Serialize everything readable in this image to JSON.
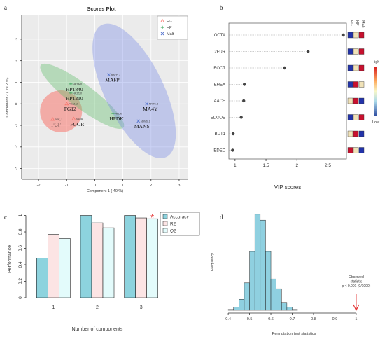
{
  "panel_labels": [
    "a",
    "b",
    "c",
    "d"
  ],
  "chart_data": [
    {
      "type": "scatter",
      "title": "Scores Plot",
      "xlabel": "Component 1 ( 40 %)",
      "ylabel": "Component 2 ( 19.2 %)",
      "xlim": [
        -2.6,
        3.3
      ],
      "ylim": [
        -3.5,
        4.1
      ],
      "xticks": [
        -2,
        -1,
        0,
        1,
        2,
        3
      ],
      "yticks": [
        -3,
        -2,
        -1,
        0,
        1,
        2,
        3
      ],
      "grid": true,
      "legend_position": "top-right",
      "series": [
        {
          "name": "FG",
          "color": "#f8766d",
          "marker": "triangle",
          "points": [
            {
              "x": -1.0,
              "y": 0.0,
              "tag": "FG12_1",
              "label": "FG12"
            },
            {
              "x": -1.5,
              "y": -0.72,
              "tag": "FGF_1",
              "label": "FGF"
            },
            {
              "x": -0.75,
              "y": -0.7,
              "tag": "FGOR",
              "label": "FGOR"
            }
          ]
        },
        {
          "name": "HP",
          "color": "#3aa35a",
          "marker": "plus",
          "points": [
            {
              "x": -0.85,
              "y": 0.92,
              "tag": "HP1840",
              "label": "HP1840"
            },
            {
              "x": -0.85,
              "y": 0.5,
              "tag": "HP1210",
              "label": "HP1210"
            },
            {
              "x": 0.65,
              "y": -0.45,
              "tag": "HPDK",
              "label": "HPDK"
            }
          ]
        },
        {
          "name": "Malt",
          "color": "#5a78d0",
          "marker": "x",
          "points": [
            {
              "x": 0.5,
              "y": 1.35,
              "tag": "MAFP_1",
              "label": "MAFP"
            },
            {
              "x": 1.85,
              "y": 0.0,
              "tag": "MA4Y_1",
              "label": "MA4Y"
            },
            {
              "x": 1.55,
              "y": -0.8,
              "tag": "MANS_1",
              "label": "MANS"
            }
          ]
        }
      ]
    },
    {
      "type": "dot",
      "xlabel": "VIP scores",
      "xlim": [
        0.9,
        2.8
      ],
      "xticks": [
        1.0,
        1.5,
        2.0,
        2.5
      ],
      "features": [
        "OCTA",
        "2FUR",
        "EOCT",
        "EHEX",
        "AACE",
        "EDODE",
        "BUT1",
        "EDEC"
      ],
      "vip": [
        2.75,
        2.18,
        1.8,
        1.15,
        1.14,
        1.1,
        0.97,
        0.96
      ],
      "group_labels": [
        "FG",
        "HP",
        "Malt"
      ],
      "heat_levels": [
        [
          "low",
          "mid",
          "high"
        ],
        [
          "low",
          "mid",
          "high"
        ],
        [
          "low",
          "mid",
          "high"
        ],
        [
          "low",
          "high",
          "mid"
        ],
        [
          "mid",
          "high",
          "low"
        ],
        [
          "low",
          "mid",
          "high"
        ],
        [
          "mid",
          "high",
          "low"
        ],
        [
          "high",
          "mid",
          "low"
        ]
      ],
      "heat_colors": {
        "low": "#2233aa",
        "mid": "#f0e2b8",
        "high": "#c8102e"
      },
      "colorbar_labels": {
        "top": "High",
        "bottom": "Low"
      }
    },
    {
      "type": "bar",
      "xlabel": "Number of components",
      "ylabel": "Performance",
      "ylim": [
        0,
        1.03
      ],
      "yticks": [
        0.0,
        0.2,
        0.4,
        0.6,
        0.8,
        1.0
      ],
      "categories": [
        "1",
        "2",
        "3"
      ],
      "legend_position": "top-right",
      "series": [
        {
          "name": "Accuracy",
          "color": "#8dd3de",
          "values": [
            0.48,
            1.0,
            1.0
          ]
        },
        {
          "name": "R2",
          "color": "#fce4e4",
          "values": [
            0.77,
            0.91,
            0.97
          ]
        },
        {
          "name": "Q2",
          "color": "#e3fbfb",
          "values": [
            0.72,
            0.85,
            0.96
          ]
        }
      ],
      "annotation": {
        "text": "*",
        "color": "#e11d1d"
      }
    },
    {
      "type": "histogram",
      "xlabel": "Permutation test statistics",
      "ylabel": "Frequency",
      "xlim": [
        0.38,
        1.02
      ],
      "xticks": [
        0.4,
        0.5,
        0.6,
        0.7,
        0.8,
        0.9,
        1.0
      ],
      "bin_width": 0.025,
      "bins_start": 0.4,
      "counts": [
        2,
        8,
        28,
        70,
        150,
        245,
        230,
        150,
        80,
        55,
        20,
        8,
        2
      ],
      "ymax": 250,
      "observed": {
        "value": 1.0,
        "lines": [
          "Observed",
          "statistic",
          "p < 0.001 (0/1000)"
        ],
        "color": "#e11d1d"
      }
    }
  ]
}
